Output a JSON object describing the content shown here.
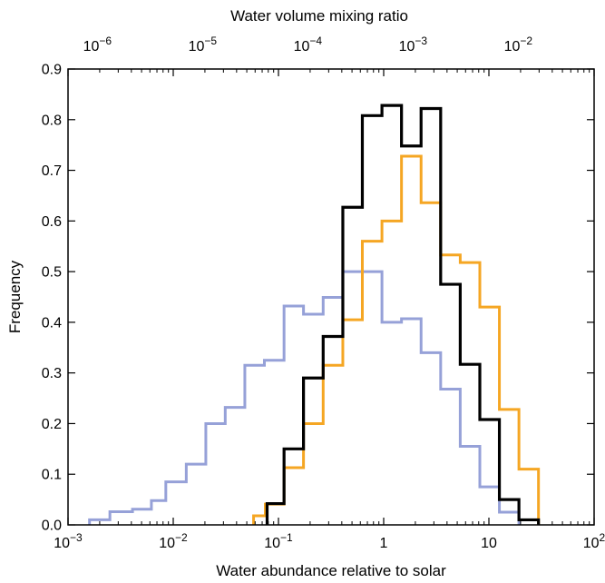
{
  "chart_data": {
    "type": "step-histogram",
    "xlabel": "Water abundance relative to solar",
    "x2label": "Water volume mixing ratio",
    "ylabel": "Frequency",
    "xscale": "log",
    "xlim": [
      0.001,
      100
    ],
    "ylim": [
      0,
      0.9
    ],
    "x_ticks": [
      {
        "value": 0.001,
        "base": "10",
        "exp": "−3"
      },
      {
        "value": 0.01,
        "base": "10",
        "exp": "−2"
      },
      {
        "value": 0.1,
        "base": "10",
        "exp": "−1"
      },
      {
        "value": 1,
        "base": "1",
        "exp": ""
      },
      {
        "value": 10,
        "base": "10",
        "exp": ""
      },
      {
        "value": 100,
        "base": "10",
        "exp": "2"
      }
    ],
    "x2_ticks": [
      {
        "value": 0.0019,
        "base": "10",
        "exp": "−6"
      },
      {
        "value": 0.019,
        "base": "10",
        "exp": "−5"
      },
      {
        "value": 0.19,
        "base": "10",
        "exp": "−4"
      },
      {
        "value": 1.9,
        "base": "10",
        "exp": "−3"
      },
      {
        "value": 19,
        "base": "10",
        "exp": "−2"
      }
    ],
    "y_ticks": [
      "0.0",
      "0.1",
      "0.2",
      "0.3",
      "0.4",
      "0.5",
      "0.6",
      "0.7",
      "0.8",
      "0.9"
    ],
    "series": [
      {
        "color": "#96a1d8",
        "edges": [
          0.0016,
          0.0025,
          0.0041,
          0.0062,
          0.0085,
          0.0133,
          0.0204,
          0.0312,
          0.0479,
          0.0735,
          0.113,
          0.173,
          0.266,
          0.409,
          0.627,
          0.963,
          1.477,
          2.267,
          3.48,
          5.34,
          8.2,
          12.58,
          19.3
        ],
        "values": [
          0.01,
          0.026,
          0.031,
          0.048,
          0.085,
          0.12,
          0.2,
          0.232,
          0.315,
          0.325,
          0.432,
          0.416,
          0.449,
          0.5,
          0.5,
          0.4,
          0.407,
          0.34,
          0.268,
          0.155,
          0.075,
          0.025
        ]
      },
      {
        "color": "#f5a623",
        "edges": [
          0.058,
          0.075,
          0.113,
          0.173,
          0.266,
          0.409,
          0.627,
          0.963,
          1.477,
          2.267,
          3.48,
          5.34,
          8.2,
          12.58,
          19.3,
          29.6
        ],
        "values": [
          0.018,
          0.041,
          0.113,
          0.2,
          0.315,
          0.405,
          0.56,
          0.6,
          0.728,
          0.636,
          0.533,
          0.518,
          0.43,
          0.228,
          0.11
        ]
      },
      {
        "color": "#000000",
        "edges": [
          0.078,
          0.113,
          0.173,
          0.266,
          0.409,
          0.627,
          0.963,
          1.477,
          2.267,
          3.48,
          5.34,
          8.2,
          12.58,
          19.3,
          29.6
        ],
        "values": [
          0.042,
          0.15,
          0.29,
          0.372,
          0.627,
          0.808,
          0.828,
          0.748,
          0.822,
          0.475,
          0.317,
          0.208,
          0.05,
          0.01
        ]
      }
    ]
  }
}
